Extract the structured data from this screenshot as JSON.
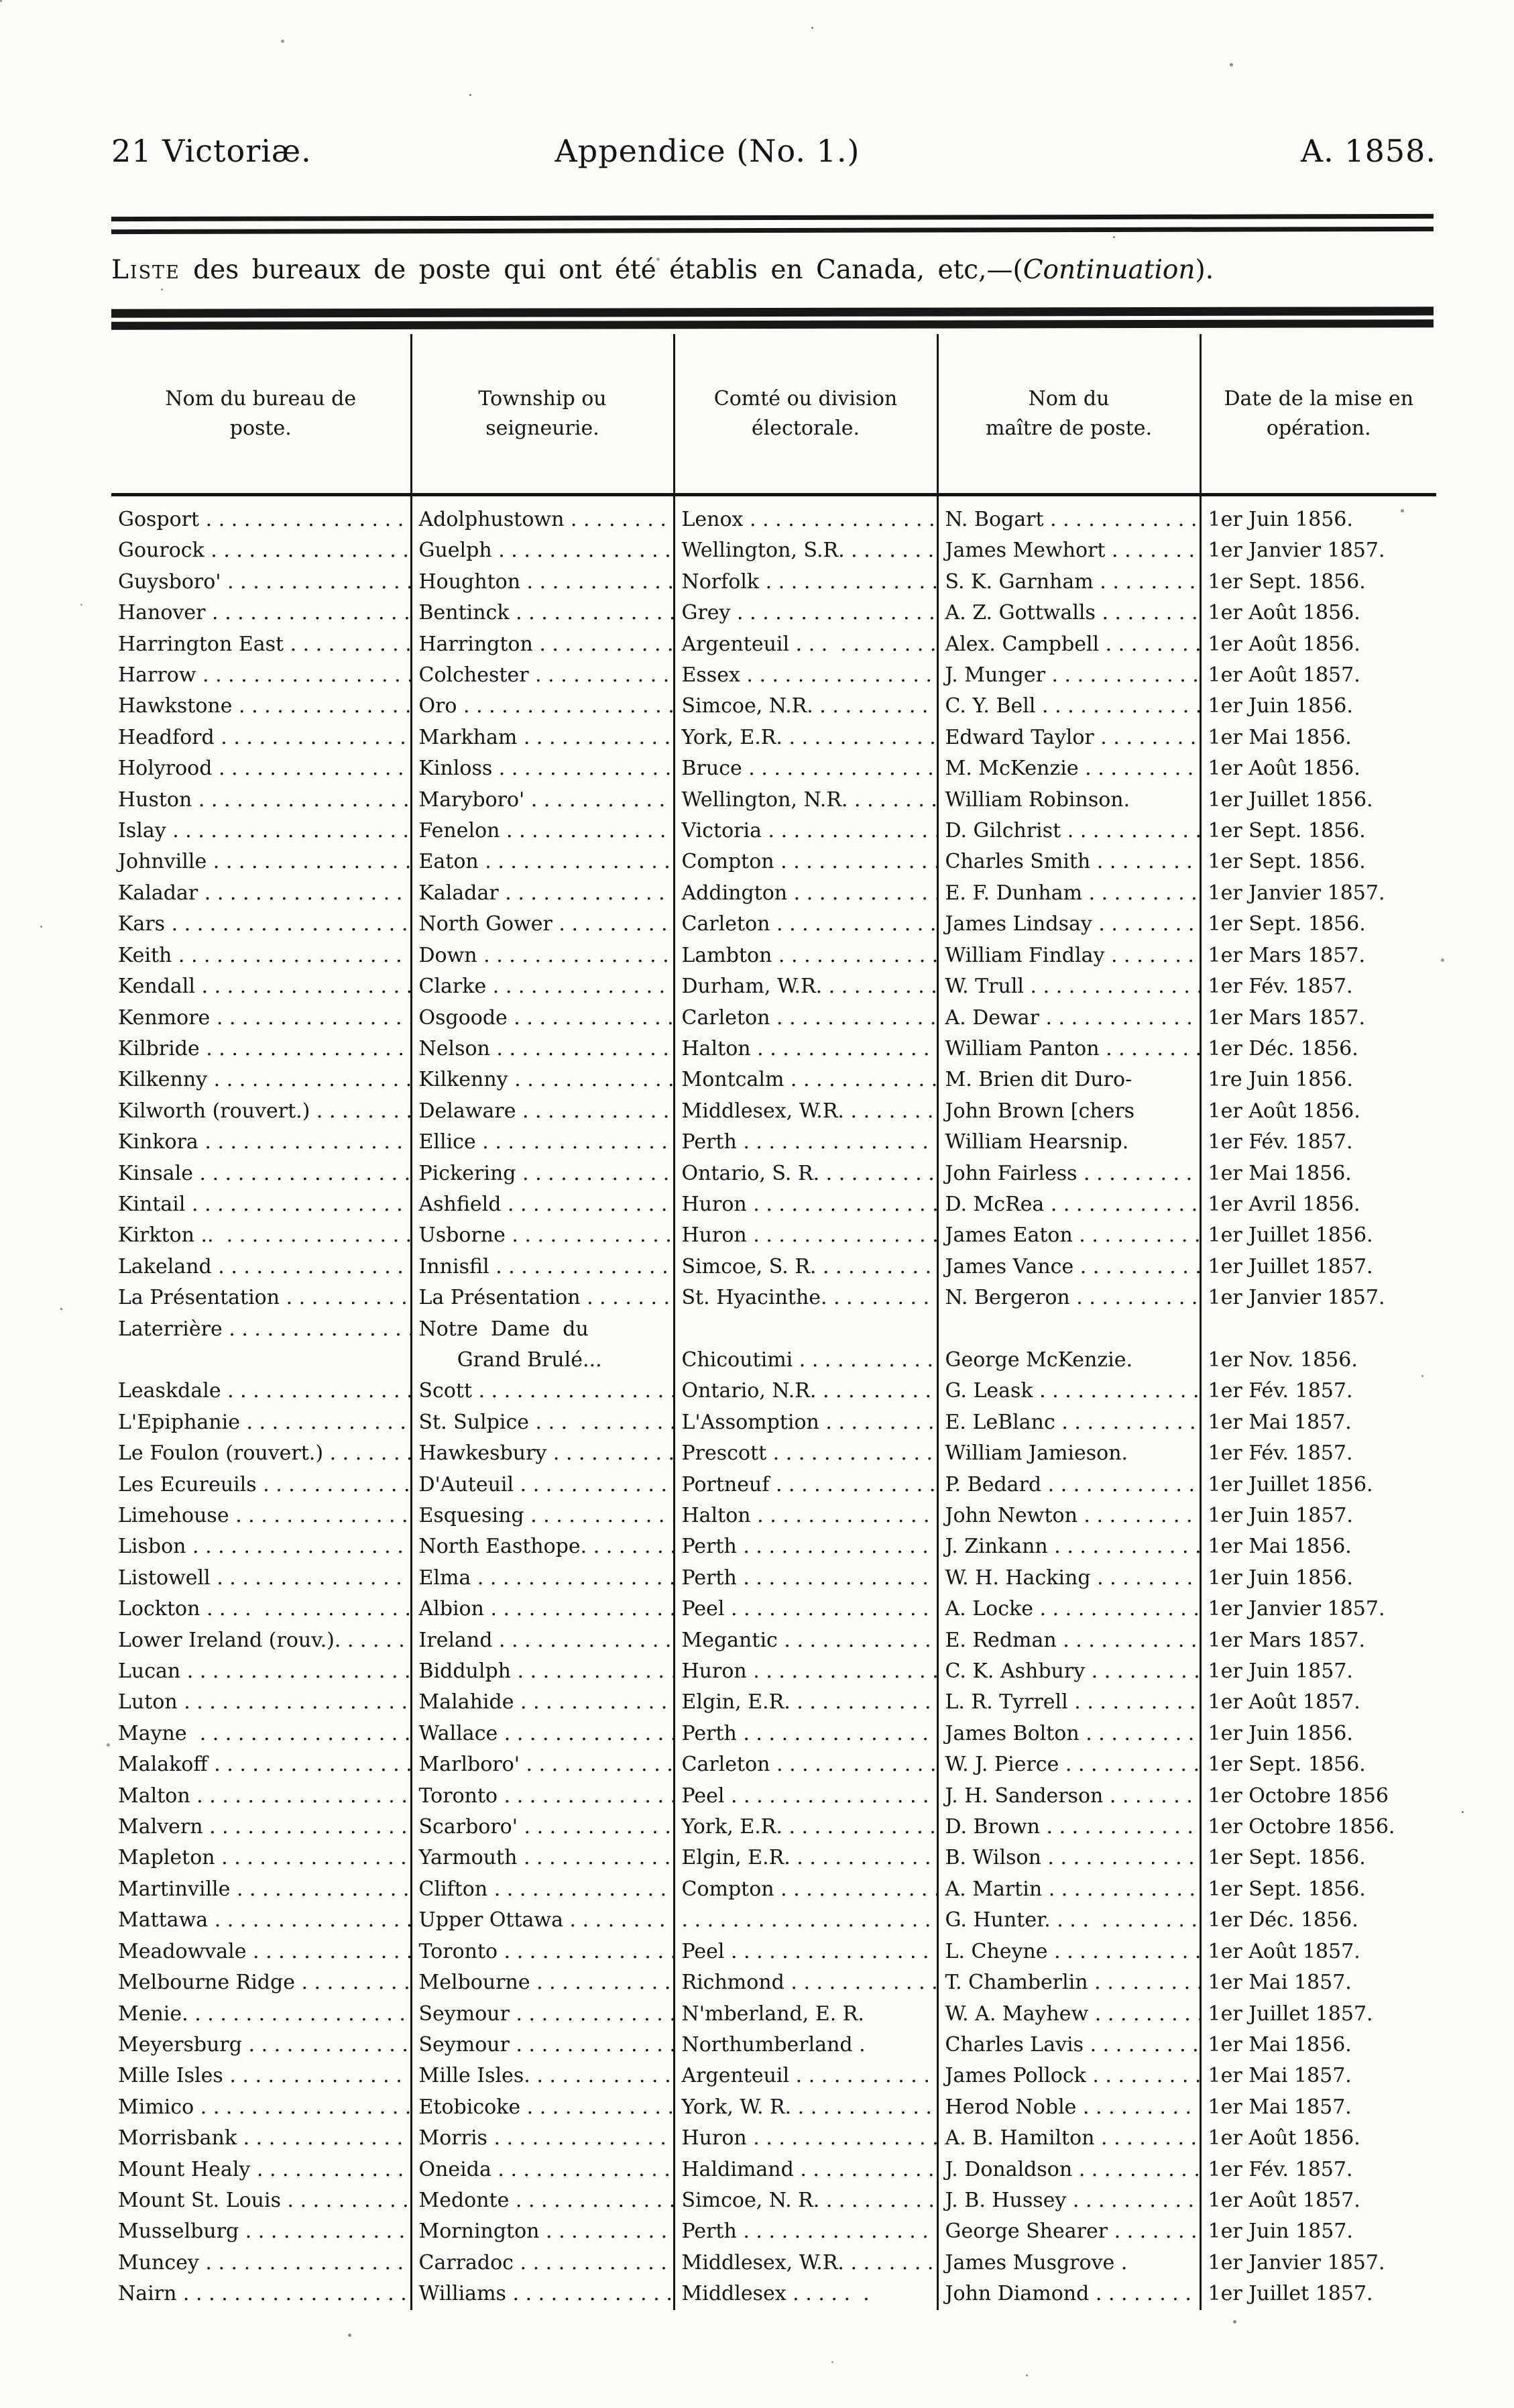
{
  "masthead": {
    "left_text": "21 Victoriæ.",
    "center_text": "Appendice (No. 1.)",
    "right_text": "A. 1858."
  },
  "list_title": {
    "lead": "Liste",
    "body": " des bureaux de poste qui ont été établis en Canada, etc,—(",
    "emphasis": "Continuation",
    "tail": ")."
  },
  "table": {
    "headers": [
      "Nom du bureau de\nposte.",
      "Township ou\nseigneurie.",
      "Comté ou division\nélectorale.",
      "Nom du\nmaître de poste.",
      "Date de la mise en\nopération."
    ],
    "rows": [
      [
        "Gosport . . . . . . . . . . . . . . . . . . . . . . . .",
        "Adolphustown . . . . . . . . . . . . . . . . . . . . .",
        "Lenox . . . . . . . . . . . . . . . . . . . . .",
        "N. Bogart . . . . . . . . . . . . . . . . . . . . .",
        "1er Juin 1856."
      ],
      [
        "Gourock . . . . . . . . . . . . . . . . . . . . . . . .",
        "Guelph . . . . . . . . . . . . . . . . . . . . .",
        "Wellington, S.R. . . . . . . . . . . . . . . . . . . . . .",
        "James Mewhort . . . . . . . . . . . . . . . . . . . . .",
        "1er Janvier 1857."
      ],
      [
        "Guysboro' . . . . . . . . . . . . . . . . . . . . . . . .",
        "Houghton . . . . . . . . . . . . . . . . . . . . .",
        "Norfolk . . . . . . . . . . . . . . . . . . . . .",
        "S. K. Garnham . . . . . . . . . . . . . . . . . . . . .",
        "1er Sept. 1856."
      ],
      [
        "Hanover . . . . . . . . . . . . . . . . . . . . . . . .",
        "Bentinck . . . . . . . . . . . . . . . . . . . . .",
        "Grey . . . . . . . . . . . . . . . . . . . . .",
        "A. Z. Gottwalls . . . . . . . . . . . . . . . . . . . . .",
        "1er Août 1856."
      ],
      [
        "Harrington East . . . . . . . . . . . . . . . . . . . . . . . .",
        "Harrington . . . . . . . . . . . . . . . . . . . . .",
        "Argenteuil . . .  . . . . . . . . . . . . . . . . . . . . .",
        "Alex. Campbell . . . . . . . . . . . . . . . . . . . . .",
        "1er Août 1856."
      ],
      [
        "Harrow . . . . . . . . . . . . . . . . . . . . . . . .",
        "Colchester . . . . . . . . . . . . . . . . . . . . .",
        "Essex . . . . . . . . . . . . . . . . . . . . .",
        "J. Munger . . . . . . . . . . . . . . . . . . . . .",
        "1er Août 1857."
      ],
      [
        "Hawkstone . . . . . . . . . . . . . . . . . . . . . . . .",
        "Oro . . . . . . . . . . . . . . . . . . . . .",
        "Simcoe, N.R. . . . . . . . . . . . . . . . . . . . . .",
        "C. Y. Bell . . . . . . . . . . . . . . . . . . . . .",
        "1er Juin 1856."
      ],
      [
        "Headford . . . . . . . . . . . . . . . . . . . . . . . .",
        "Markham . . . . . . . . . . . . . . . . . . . . .",
        "York, E.R. . . . . . . . . . . . . . . . . . . . . .",
        "Edward Taylor . . . . . . . . . . . . . . . . . . . . .",
        "1er Mai 1856."
      ],
      [
        "Holyrood . . . . . . . . . . . . . . . . . . . . . . . .",
        "Kinloss . . . . . . . . . . . . . . . . . . . . .",
        "Bruce . . . . . . . . . . . . . . . . . . . . .",
        "M. McKenzie . . . . . . . . . . . . . . . . . . . . .",
        "1er Août 1856."
      ],
      [
        "Huston . . . . . . . . . . . . . . . . . . . . . . . .",
        "Maryboro' . . . . . . . . . . . . . . . . . . . . .",
        "Wellington, N.R. . . . . . . . . . . . . . . . . . . . . .",
        "William Robinson.",
        "1er Juillet 1856."
      ],
      [
        "Islay . . . . . . . . . . . . . . . . . . . . . . . .",
        "Fenelon . . . . . . . . . . . . . . . . . . . . .",
        "Victoria . . . . . . . . . . . . . . . . . . . . .",
        "D. Gilchrist . . . . . . . . . . . . . . . . . . . . .",
        "1er Sept. 1856."
      ],
      [
        "Johnville . . . . . . . . . . . . . . . . . . . . . . . .",
        "Eaton . . . . . . . . . . . . . . . . . . . . .",
        "Compton . . . . . . . . . . . . . . . . . . . . .",
        "Charles Smith . . . . . . . . . . . . . . . . . . . . .",
        "1er Sept. 1856."
      ],
      [
        "Kaladar . . . . . . . . . . . . . . . . . . . . . . . .",
        "Kaladar . . . . . . . . . . . . . . . . . . . . .",
        "Addington . . . . . . . . . . . . . . . . . . . . .",
        "E. F. Dunham . . . . . . . . . . . . . . . . . . . . .",
        "1er Janvier 1857."
      ],
      [
        "Kars . . . . . . . . . . . . . . . . . . . . . . . .",
        "North Gower . . . . . . . . . . . . . . . . . . . . .",
        "Carleton . . . . . . . . . . . . . . . . . . . . .",
        "James Lindsay . . . . . . . . . . . . . . . . . . . . .",
        "1er Sept. 1856."
      ],
      [
        "Keith . . . . . . . . . . . . . . . . . . . . . . . .",
        "Down . . . . . . . . . . . . . . . . . . . . .",
        "Lambton . . . . . . . . . . . . . . . . . . . . .",
        "William Findlay . . . . . . . . . . . . . . . . . . . . .",
        "1er Mars 1857."
      ],
      [
        "Kendall . . . . . . . . . . . . . . . . . . . . . . . .",
        "Clarke . . . . . . . . . . . . . . . . . . . . .",
        "Durham, W.R. . . . . . . . . . . . . . . . . . . . . .",
        "W. Trull . . . . . . . . . . . . . . . . . . . . .",
        "1er Fév. 1857."
      ],
      [
        "Kenmore . . . . . . . . . . . . . . . . . . . . . . . .",
        "Osgoode . . . . . . . . . . . . . . . . . . . . .",
        "Carleton . . . . . . . . . . . . . . . . . . . . .",
        "A. Dewar . . . . . . . . . . . . . . . . . . . . .",
        "1er Mars 1857."
      ],
      [
        "Kilbride . . . . . . . . . . . . . . . . . . . . . . . .",
        "Nelson . . . . . . . . . . . . . . . . . . . . .",
        "Halton . . . . . . . . . . . . . . . . . . . . .",
        "William Panton . . . . . . . . . . . . . . . . . . . . .",
        "1er Déc. 1856."
      ],
      [
        "Kilkenny . . . . . . . . . . . . . . . . . . . . . . . .",
        "Kilkenny . . . . . . . . . . . . . . . . . . . . .",
        "Montcalm . . . . . . . . . . . . . . . . . . . . .",
        "M. Brien dit Duro-",
        "1re Juin 1856."
      ],
      [
        "Kilworth (rouvert.) . . . . . . . . . . . . . . .",
        "Delaware . . . . . . . . . . . . . . . . . . . . .",
        "Middlesex, W.R. . . . . . . . . . . . . . . . . . . . . .",
        "John Brown [chers",
        "1er Août 1856."
      ],
      [
        "Kinkora . . . . . . . . . . . . . . . . . . . . . . . .",
        "Ellice . . . . . . . . . . . . . . . . . . . . .",
        "Perth . . . . . . . . . . . . . . . . . . . . .",
        "William Hearsnip.",
        "1er Fév. 1857."
      ],
      [
        "Kinsale . . . . . . . . . . . . . . . . . . . . . . . .",
        "Pickering . . . . . . . . . . . . . . . . . . . . .",
        "Ontario, S. R. . . . . . . . . . . . . . . . . . . . . .",
        "John Fairless . . . . . . . . . . . . . . . . . . . . .",
        "1er Mai 1856."
      ],
      [
        "Kintail . . . . . . . . . . . . . . . . . . . . . . . .",
        "Ashfield . . . . . . . . . . . . . . . . . . . . .",
        "Huron . . . . . . . . . . . . . . . . . . . . .",
        "D. McRea . . . . . . . . . . . . . . . . . . . . .",
        "1er Avril 1856."
      ],
      [
        "Kirkton ..  . . . . . . . . . . . . . . . . . . . . .",
        "Usborne . . . . . . . . . . . . . . . . . . . . .",
        "Huron . . . . . . . . . . . . . . . . . . . . .",
        "James Eaton . . . . . . . . . . . . . . . . . . . . .",
        "1er Juillet 1856."
      ],
      [
        "Lakeland . . . . . . . . . . . . . . . . . . . . . . . .",
        "Innisfil . . . . . . . . . . . . . . . . . . . . .",
        "Simcoe, S. R. . . . . . . . . . . . . . . . . . . . . .",
        "James Vance . . . . . . . . . . . . . . . . . . . . .",
        "1er Juillet 1857."
      ],
      [
        "La Présentation . . . . . . . . . . . . . . . . . . . .",
        "La Présentation . . . . . . . . . . . . . . . . . .",
        "St. Hyacinthe. . . . . . . . . . . . . . . . . . . . .",
        "N. Bergeron . . . . . . . . . . . . . . . . . . . . .",
        "1er Janvier 1857."
      ],
      [
        "Laterrière . . . . . . . . . . . . . . . . . . . . . . . .",
        "Notre  Dame  du\n      Grand Brulé...",
        "\nChicoutimi . . . . . . . . . . . . . . . . . . . . .",
        "\nGeorge McKenzie.",
        "\n1er Nov. 1856."
      ],
      [
        "Leaskdale . . . . . . . . . . . . . . . . . . . . . . . .",
        "Scott . . . . . . . . . . . . . . . . . . . . .",
        "Ontario, N.R. . . . . . . . . . . . . . . . . . . . . .",
        "G. Leask . . . . . . . . . . . . . . . . . . . . .",
        "1er Fév. 1857."
      ],
      [
        "L'Epiphanie . . . . . . . . . . . . . . . . . . . . . . . .",
        "St. Sulpice . . .  . . . . . . . . . . . . . . . . .",
        "L'Assomption . . . . . . . . . . . . . . . . . . . . .",
        "E. LeBlanc . . . . . . . . . . . . . . . . . . . . .",
        "1er Mai 1857."
      ],
      [
        "Le Foulon (rouvert.) . . . . . . . . . . . . .",
        "Hawkesbury . . . . . . . . . . . . . . . . . . . . .",
        "Prescott . . . . . . . . . . . . . . . . . . . . .",
        "William Jamieson.",
        "1er Fév. 1857."
      ],
      [
        "Les Ecureuils . . . . . . . . . . . . . . . . . . . . . .",
        "D'Auteuil . . . . . . . . . . . . . . . . . . . . .",
        "Portneuf . . . . . . . . . . . . . . . . . . . . .",
        "P. Bedard . . . . . . . . . . . . . . . . . . . . .",
        "1er Juillet 1856."
      ],
      [
        "Limehouse . . . . . . . . . . . . . . . . . . . . . . . .",
        "Esquesing . . . . . . . . . . . . . . . . . . . . .",
        "Halton . . . . . . . . . . . . . . . . . . . . .",
        "John Newton . . . . . . . . . . . . . . . . . . . . .",
        "1er Juin 1857."
      ],
      [
        "Lisbon . . . . . . . . . . . . . . . . . . . . . . . .",
        "North Easthope. . . . . . . . . . . . . . . . . . .",
        "Perth . . . . . . . . . . . . . . . . . . . . .",
        "J. Zinkann . . . . . . . . . . . . . . . . . . . . .",
        "1er Mai 1856."
      ],
      [
        "Listowell . . . . . . . . . . . . . . . . . . . . . . . .",
        "Elma . . . . . . . . . . . . . . . . . . . . .",
        "Perth . . . . . . . . . . . . . . . . . . . . .",
        "W. H. Hacking . . . . . . . . . . . . . . . . . . . . .",
        "1er Juin 1856."
      ],
      [
        "Lockton . . . .  . . . . . . . . . . . . . . . . . . . .",
        "Albion . . . . . . . . . . . . . . . . . . . . .",
        "Peel . . . . . . . . . . . . . . . . . . . . .",
        "A. Locke . . . . . . . . . . . . . . . . . . . . .",
        "1er Janvier 1857."
      ],
      [
        "Lower Ireland (rouv.). . . . . . . . . .",
        "Ireland . . . . . . . . . . . . . . . . . . . . .",
        "Megantic . . . . . . . . . . . . . . . . . . . . .",
        "E. Redman . . . . . . . . . . . . . . . . . . . . .",
        "1er Mars 1857."
      ],
      [
        "Lucan . . . . . . . . . . . . . . . . . . . . . . . .",
        "Biddulph . . . . . . . . . . . . . . . . . . . . .",
        "Huron . . . . . . . . . . . . . . . . . . . . .",
        "C. K. Ashbury . . . . . . . . . . . . . . . . . . . . .",
        "1er Juin 1857."
      ],
      [
        "Luton . . . . . . . . . . . . . . . . . . . . . . . .",
        "Malahide . . . . . . . . . . . . . . . . . . . . .",
        "Elgin, E.R. . . . . . . . . . . . . . . . . . . . . .",
        "L. R. Tyrrell . . . . . . . . . . . . . . . . . . . . .",
        "1er Août 1857."
      ],
      [
        "Mayne  . . . . . . . . . . . . . . . . . . . . . . .",
        "Wallace . . . . . . . . . . . . . . . . . . . . .",
        "Perth . . . . . . . . . . . . . . . . . . . . .",
        "James Bolton . . . . . . . . . . . . . . . . . . . . .",
        "1er Juin 1856."
      ],
      [
        "Malakoff . . . . . . . . . . . . . . . . . . . . . . . .",
        "Marlboro' . . . . . . . . . . . . . . . . . . . . .",
        "Carleton . . . . . . . . . . . . . . . . . . . . .",
        "W. J. Pierce . . . . . . . . . . . . . . . . . . . . .",
        "1er Sept. 1856."
      ],
      [
        "Malton . . . . . . . . . . . . . . . . . . . . . . . .",
        "Toronto . . . . . . . . . . . . . . . . . . . . .",
        "Peel . . . . . . . . . . . . . . . . . . . . .",
        "J. H. Sanderson . . . . . . . . . . . . . . . . . . . . .",
        "1er Octobre 1856"
      ],
      [
        "Malvern . . . . . . . . . . . . . . . . . . . . . . . .",
        "Scarboro' . . . . . . . . . . . . . . . . . . . . .",
        "York, E.R. . . . . . . . . . . . . . . . . . . . . .",
        "D. Brown . . . . . . . . . . . . . . . . . . . . .",
        "1er Octobre 1856."
      ],
      [
        "Mapleton . . . . . . . . . . . . . . . . . . . . . . . .",
        "Yarmouth . . . . . . . . . . . . . . . . . . . . .",
        "Elgin, E.R. . . . . . . . . . . . . . . . . . . . . .",
        "B. Wilson . . . . . . . . . . . . . . . . . . . . .",
        "1er Sept. 1856."
      ],
      [
        "Martinville . . . . . . . . . . . . . . . . . . . . . . . .",
        "Clifton . . . . . . . . . . . . . . . . . . . . .",
        "Compton . . . . . . . . . . . . . . . . . . . . .",
        "A. Martin . . . . . . . . . . . . . . . . . . . . .",
        "1er Sept. 1856."
      ],
      [
        "Mattawa . . . . . . . . . . . . . . . . . . . . . . . .",
        "Upper Ottawa . . . . . . . . . . . . . . . . . . .",
        ". . . . . . . . . . . . . . . . . . . . . . . .",
        "G. Hunter. . . .  . . . . . . . . . . . . . . . . .",
        "1er Déc. 1856."
      ],
      [
        "Meadowvale . . . . . . . . . . . . . . . . . . . . . . . .",
        "Toronto . . . . . . . . . . . . . . . . . . . . .",
        "Peel . . . . . . . . . . . . . . . . . . . . .",
        "L. Cheyne . . . . . . . . . . . . . . . . . . . . .",
        "1er Août 1857."
      ],
      [
        "Melbourne Ridge . . . . . . . . . . . . . . . . . .",
        "Melbourne . . . . . . . . . . . . . . . . . . . . .",
        "Richmond . . . . . . . . . . . . . . . . . . . . .",
        "T. Chamberlin . . . . . . . . . . . . . . . . . . . . .",
        "1er Mai 1857."
      ],
      [
        "Menie. . . . . . . . . . . . . . . . . . . . . . . . .",
        "Seymour . . . . . . . . . . . . . . . . . . . . .",
        "N'mberland, E. R.",
        "W. A. Mayhew . . . . . . . . . . . . . . . . . . . . .",
        "1er Juillet 1857."
      ],
      [
        "Meyersburg . . . . . . . . . . . . . . . . . . . . . . . .",
        "Seymour . . . . . . . . . . . . . . . . . . . . .",
        "Northumberland .",
        "Charles Lavis . . . . . . . . . . . . . . . . . . . . .",
        "1er Mai 1856."
      ],
      [
        "Mille Isles . . . . . . . . . . . . . . . . . . . . . . . .",
        "Mille Isles. . . . . . . . . . . . . . . . . . . . .",
        "Argenteuil . . . . . . . . . . . . . . . . . . . . .",
        "James Pollock . . . . . . . . . . . . . . . . . . . . .",
        "1er Mai 1857."
      ],
      [
        "Mimico . . . . . . . . . . . . . . . . . . . . . . . .",
        "Etobicoke . . . . . . . . . . . . . . . . . . . . .",
        "York, W. R. . . . . . . . . . . . . . . . . . . . . .",
        "Herod Noble . . . . . . . . . . . . . . . . . . . . .",
        "1er Mai 1857."
      ],
      [
        "Morrisbank . . . . . . . . . . . . . . . . . . . . . . . .",
        "Morris . . . . . . . . . . . . . . . . . . . . .",
        "Huron . . . . . . . . . . . . . . . . . . . . .",
        "A. B. Hamilton . . . . . . . . . . . . . . . . . . . . .",
        "1er Août 1856."
      ],
      [
        "Mount Healy . . . . . . . . . . . . . . . . . . . . . .",
        "Oneida . . . . . . . . . . . . . . . . . . . . .",
        "Haldimand . . . . . . . . . . . . . . . . . . . . .",
        "J. Donaldson . . . . . . . . . . . . . . . . . . . . .",
        "1er Fév. 1857."
      ],
      [
        "Mount St. Louis . . . . . . . . . . . . . . . . . . .",
        "Medonte . . . . . . . . . . . . . . . . . . . . .",
        "Simcoe, N. R. . . . . . . . . . . . . . . . . . . . . .",
        "J. B. Hussey . . . . . . . . . . . . . . . . . . . . .",
        "1er Août 1857."
      ],
      [
        "Musselburg . . . . . . . . . . . . . . . . . . . . . . . .",
        "Mornington . . . . . . . . . . . . . . . . . . . . .",
        "Perth . . . . . . . . . . . . . . . . . . . . .",
        "George Shearer . . . . . . . . . . . . . . . . . . . . .",
        "1er Juin 1857."
      ],
      [
        "Muncey . . . . . . . . . . . . . . . . . . . . . . . .",
        "Carradoc . . . . . . . . . . . . . . . . . . . . .",
        "Middlesex, W.R. . . . . . . . . . . . . . . . . . . . . .",
        "James Musgrove .",
        "1er Janvier 1857."
      ],
      [
        "Nairn . . . . . . . . . . . . . . . . . . . . . . . .",
        "Williams . . . . . . . . . . . . . . . . . . . . .",
        "Middlesex . . . . .  .",
        "John Diamond . . . . . . . . . . . . . . . . . . . . .",
        "1er Juillet 1857."
      ]
    ]
  }
}
